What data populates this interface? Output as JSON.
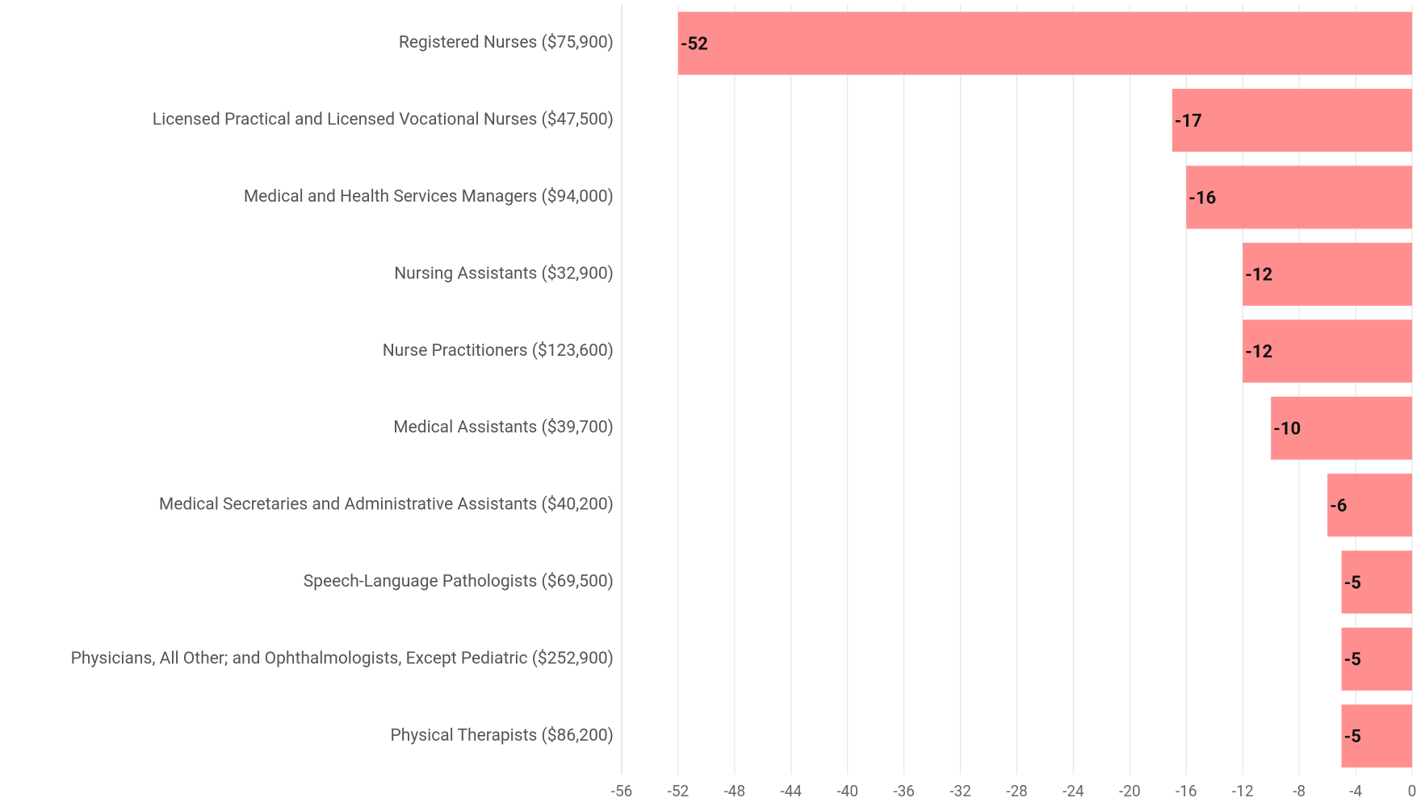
{
  "chart_data": {
    "type": "bar",
    "orientation": "horizontal",
    "categories": [
      "Registered Nurses ($75,900)",
      "Licensed Practical and Licensed Vocational Nurses ($47,500)",
      "Medical and Health Services Managers ($94,000)",
      "Nursing Assistants ($32,900)",
      "Nurse Practitioners ($123,600)",
      "Medical Assistants ($39,700)",
      "Medical Secretaries and Administrative Assistants ($40,200)",
      "Speech-Language Pathologists ($69,500)",
      "Physicians, All Other; and Ophthalmologists, Except Pediatric ($252,900)",
      "Physical Therapists ($86,200)"
    ],
    "values": [
      -52,
      -17,
      -16,
      -12,
      -12,
      -10,
      -6,
      -5,
      -5,
      -5
    ],
    "color": "#ff8f8f",
    "xlim": [
      -56,
      0
    ],
    "xticks": [
      -56,
      -52,
      -48,
      -44,
      -40,
      -36,
      -32,
      -28,
      -24,
      -20,
      -16,
      -12,
      -8,
      -4,
      0
    ],
    "grid": true
  }
}
